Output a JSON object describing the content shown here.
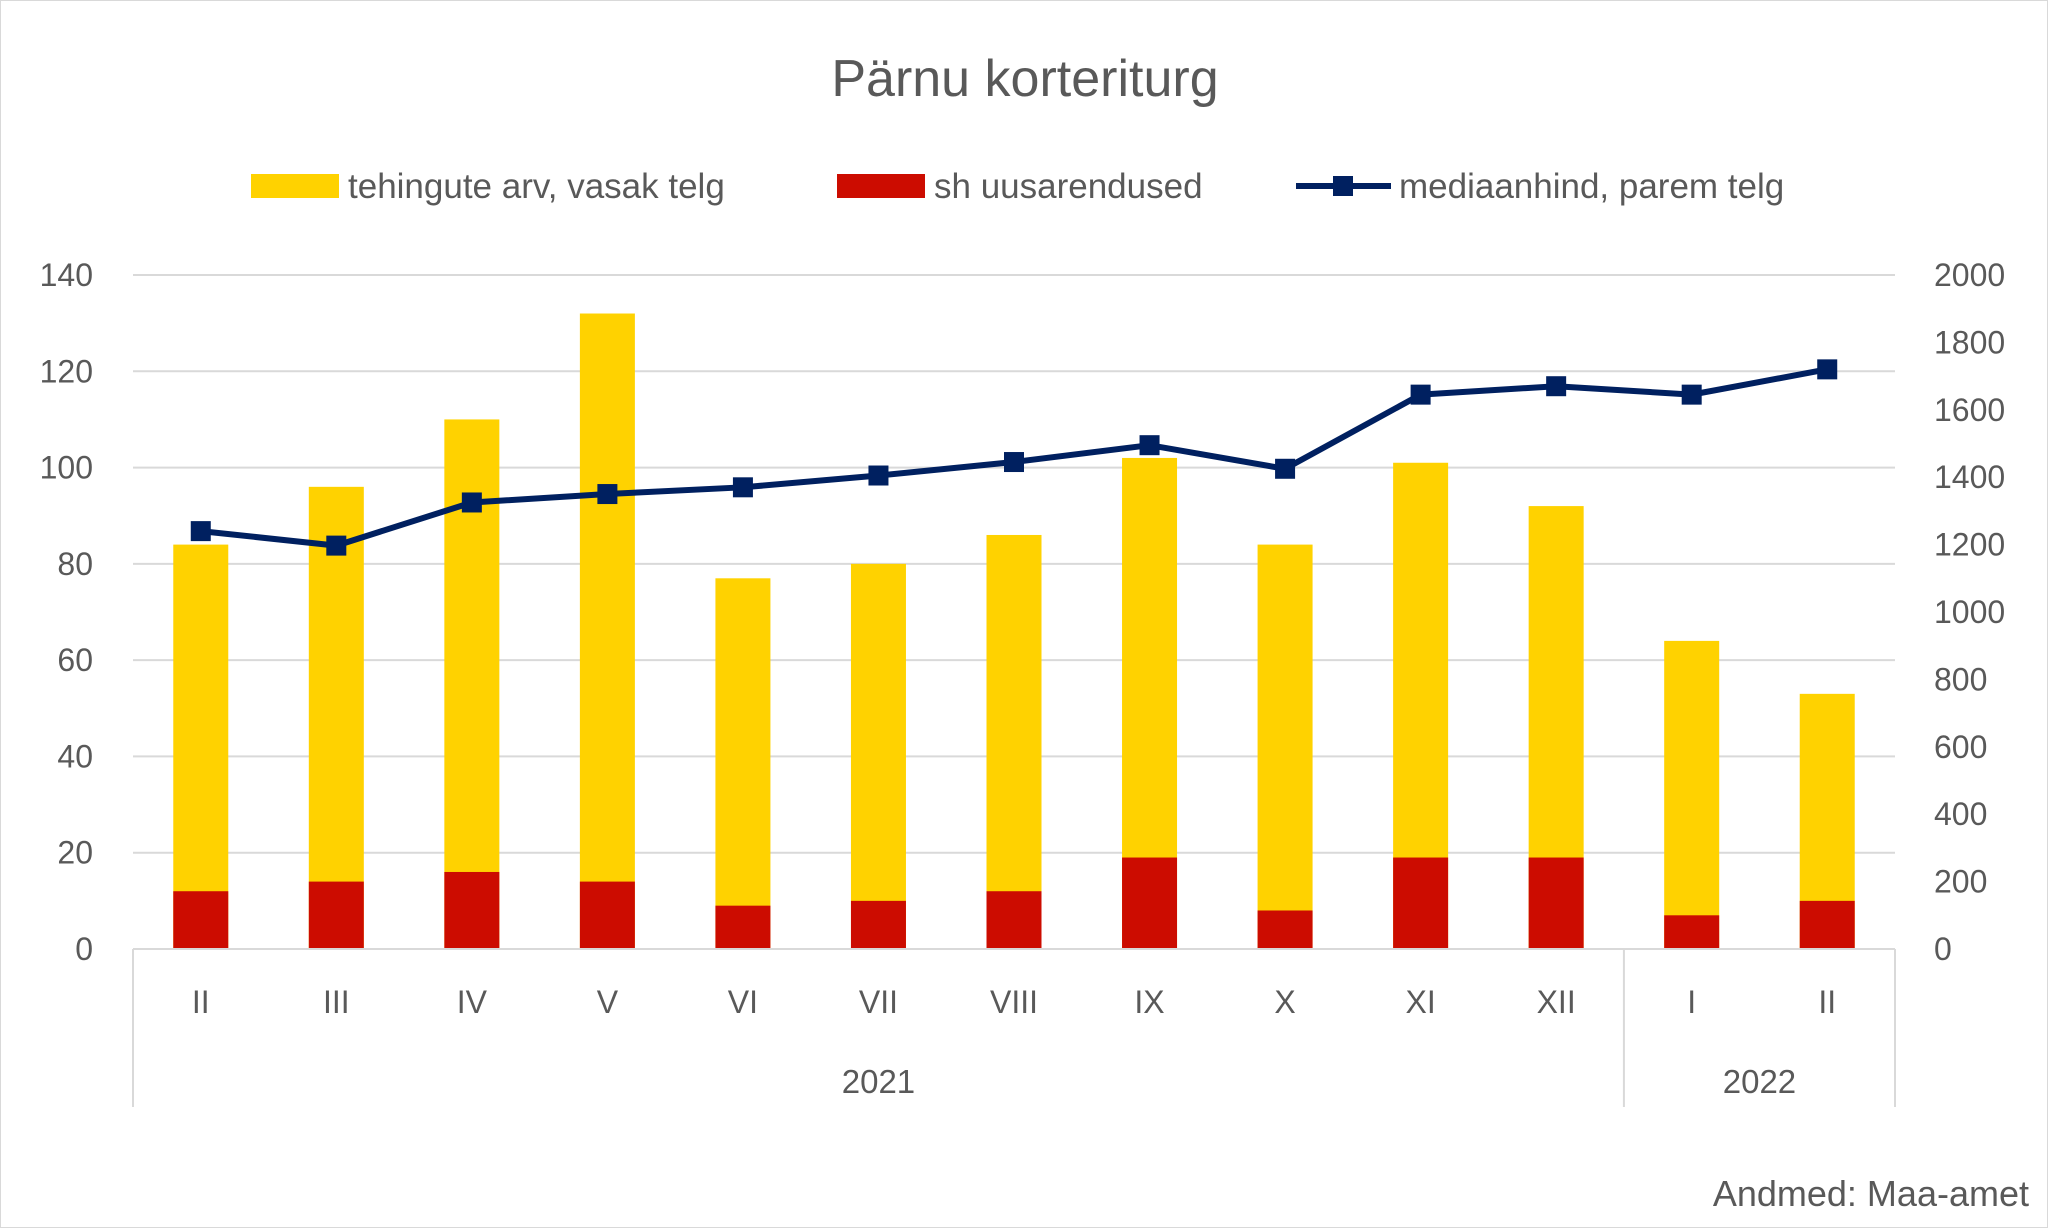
{
  "chart_data": {
    "type": "bar",
    "title": "Pärnu korteriturg",
    "source": "Andmed: Maa-amet",
    "categories": [
      "II",
      "III",
      "IV",
      "V",
      "VI",
      "VII",
      "VIII",
      "IX",
      "X",
      "XI",
      "XII",
      "I",
      "II"
    ],
    "groups": [
      {
        "label": "2021",
        "categories": [
          "II",
          "III",
          "IV",
          "V",
          "VI",
          "VII",
          "VIII",
          "IX",
          "X",
          "XI",
          "XII"
        ]
      },
      {
        "label": "2022",
        "categories": [
          "I",
          "II"
        ]
      }
    ],
    "series": [
      {
        "name": "tehingute arv, vasak telg",
        "type": "bar",
        "axis": "left",
        "color": "#FFD200",
        "values": [
          84,
          96,
          110,
          132,
          77,
          80,
          86,
          102,
          84,
          101,
          92,
          64,
          53
        ]
      },
      {
        "name": "sh uusarendused",
        "type": "bar",
        "axis": "left",
        "color": "#CC0C00",
        "values": [
          12,
          14,
          16,
          14,
          9,
          10,
          12,
          19,
          8,
          19,
          19,
          7,
          10
        ]
      },
      {
        "name": "mediaanhind, parem telg",
        "type": "line",
        "axis": "right",
        "color": "#002060",
        "marker": "square",
        "values": [
          1240,
          1197,
          1325,
          1350,
          1370,
          1405,
          1445,
          1495,
          1425,
          1645,
          1670,
          1645,
          1720
        ]
      }
    ],
    "y_left": {
      "min": 0,
      "max": 140,
      "step": 20,
      "ticks": [
        "0",
        "20",
        "40",
        "60",
        "80",
        "100",
        "120",
        "140"
      ]
    },
    "y_right": {
      "min": 0,
      "max": 2000,
      "step": 200,
      "ticks": [
        "0",
        "200",
        "400",
        "600",
        "800",
        "1000",
        "1200",
        "1400",
        "1600",
        "1800",
        "2000"
      ]
    },
    "grid": true,
    "legend_position": "top"
  }
}
